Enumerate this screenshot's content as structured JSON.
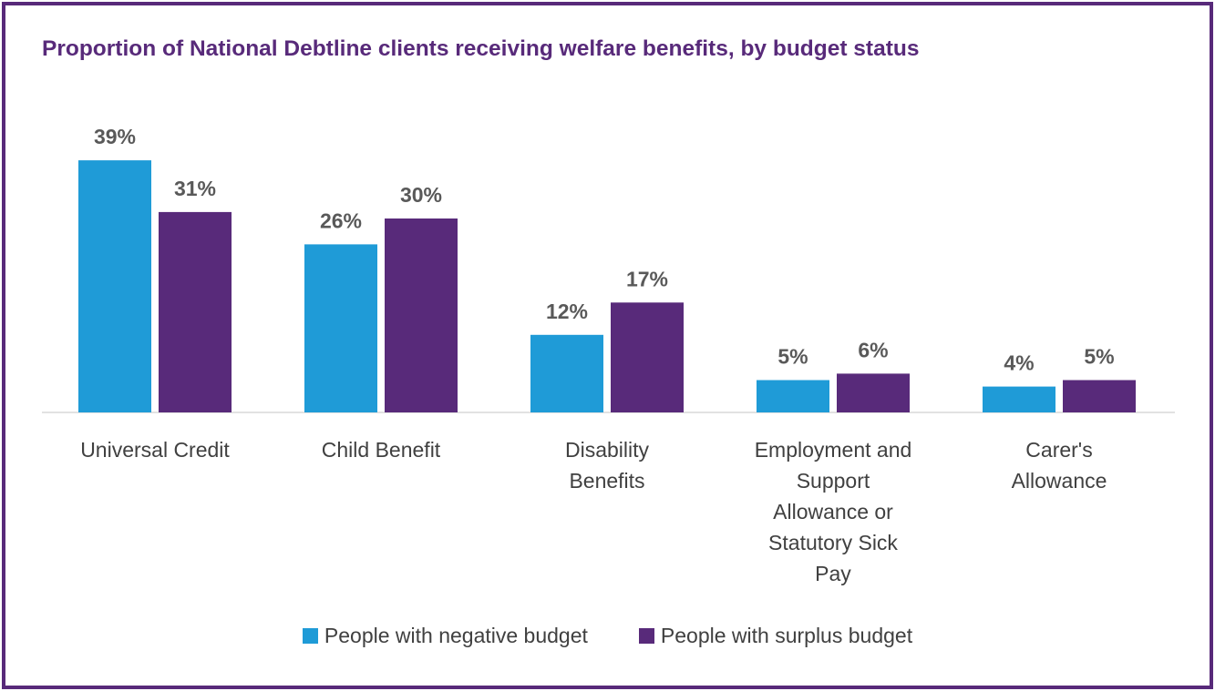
{
  "colors": {
    "negative": "#1f9bd7",
    "surplus": "#582a7a",
    "frame": "#582a7a"
  },
  "chart_data": {
    "type": "bar",
    "title": "Proportion of National Debtline clients receiving welfare benefits, by budget status",
    "categories": [
      [
        "Universal Credit"
      ],
      [
        "Child Benefit"
      ],
      [
        "Disability",
        "Benefits"
      ],
      [
        "Employment and",
        "Support",
        "Allowance or",
        "Statutory Sick",
        "Pay"
      ],
      [
        "Carer's",
        "Allowance"
      ]
    ],
    "series": [
      {
        "name": "People with negative budget",
        "values": [
          39,
          26,
          12,
          5,
          4
        ],
        "labels": [
          "39%",
          "26%",
          "12%",
          "5%",
          "4%"
        ]
      },
      {
        "name": "People with surplus budget",
        "values": [
          31,
          30,
          17,
          6,
          5
        ],
        "labels": [
          "31%",
          "30%",
          "17%",
          "6%",
          "5%"
        ]
      }
    ],
    "ylim": [
      0,
      40
    ],
    "unit": "%",
    "grid": false,
    "legend_position": "bottom"
  }
}
